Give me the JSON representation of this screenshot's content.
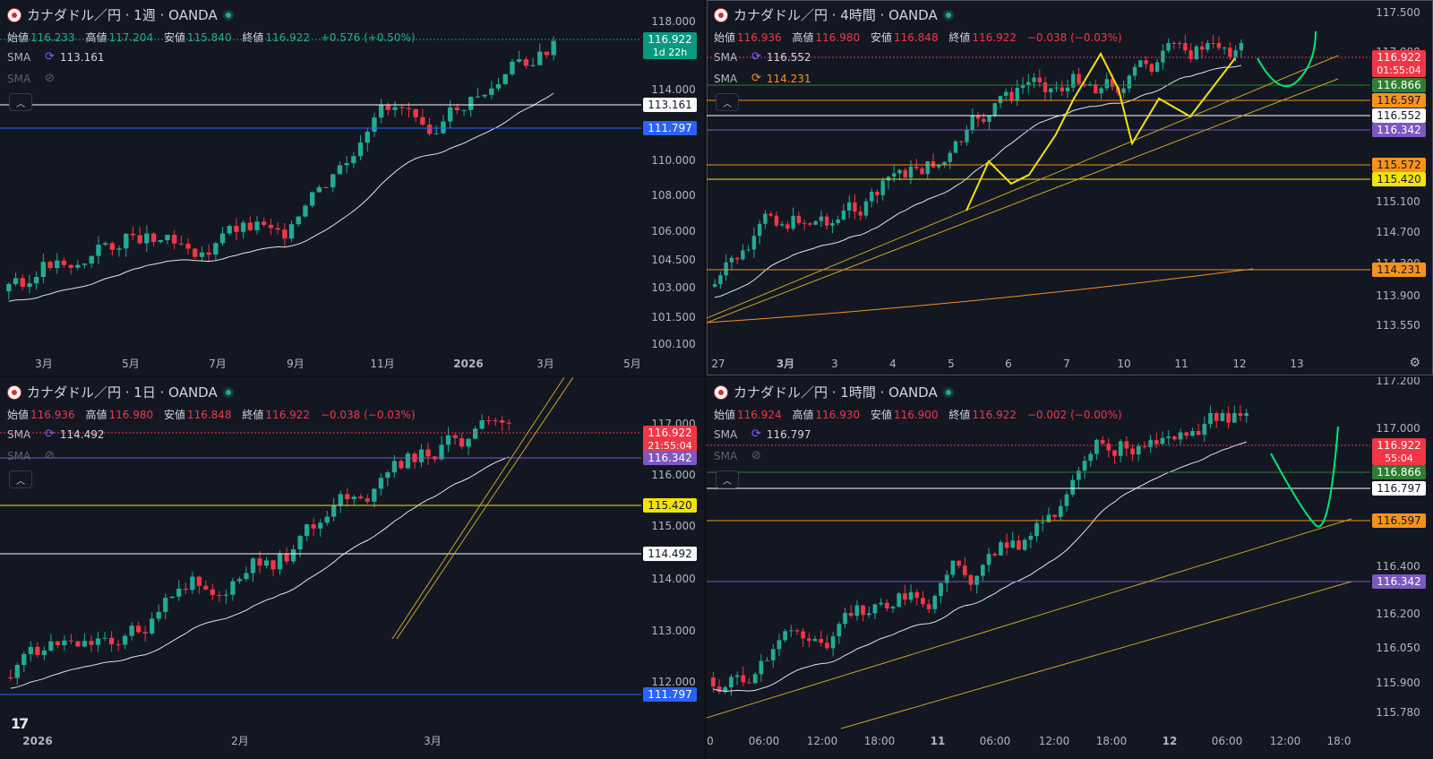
{
  "colors": {
    "bg": "#131722",
    "up": "#22ab94",
    "down": "#f23645",
    "sma": "#e0e3eb",
    "blue": "#2962ff",
    "purple": "#7e57c2",
    "yellow": "#f5e20b",
    "orange": "#f7931a",
    "green": "#00e676",
    "grid": "#1e222d"
  },
  "panels": [
    {
      "id": "weekly",
      "title": "カナダドル／円 · 1週 · OANDA",
      "ohlc": {
        "open_label": "始値",
        "open": "116.233",
        "high_label": "高値",
        "high": "117.204",
        "low_label": "安値",
        "low": "115.840",
        "close_label": "終値",
        "close": "116.922",
        "change": "+0.576 (+0.50%)",
        "color": "up"
      },
      "indicators": [
        {
          "name": "SMA",
          "value": "113.161",
          "icon": "refresh-icon",
          "dim": false
        },
        {
          "name": "SMA",
          "value": "",
          "icon": "eye-off-icon",
          "dim": true
        }
      ],
      "price_ticks": [
        "118.000",
        "114.000",
        "110.000",
        "108.000",
        "106.000",
        "104.500",
        "103.000",
        "101.500",
        "100.100"
      ],
      "time_ticks": [
        "3月",
        "5月",
        "7月",
        "9月",
        "11月",
        "2026",
        "3月",
        "5月"
      ],
      "tags": [
        {
          "text": "116.922",
          "sub": "1d 22h",
          "bg": "#089981",
          "fg": "#ffffff"
        },
        {
          "text": "113.161",
          "bg": "#ffffff",
          "fg": "#131722"
        },
        {
          "text": "111.797",
          "bg": "#2962ff",
          "fg": "#ffffff"
        }
      ]
    },
    {
      "id": "h4",
      "title": "カナダドル／円 · 4時間 · OANDA",
      "ohlc": {
        "open_label": "始値",
        "open": "116.936",
        "high_label": "高値",
        "high": "116.980",
        "low_label": "安値",
        "low": "116.848",
        "close_label": "終値",
        "close": "116.922",
        "change": "−0.038 (−0.03%)",
        "color": "down"
      },
      "indicators": [
        {
          "name": "SMA",
          "value": "116.552",
          "icon": "refresh-icon",
          "dim": false
        },
        {
          "name": "SMA",
          "value": "114.231",
          "icon": "refresh-icon",
          "dim": false,
          "color": "#f7931a"
        }
      ],
      "price_ticks": [
        "117.500",
        "117.000",
        "115.100",
        "114.700",
        "114.300",
        "113.900",
        "113.550"
      ],
      "time_ticks": [
        "27",
        "3月",
        "3",
        "4",
        "5",
        "6",
        "7",
        "10",
        "11",
        "12",
        "13"
      ],
      "tags": [
        {
          "text": "116.922",
          "sub": "01:55:04",
          "bg": "#f23645",
          "fg": "#ffffff"
        },
        {
          "text": "116.866",
          "bg": "#2e7d32",
          "fg": "#ffffff"
        },
        {
          "text": "116.597",
          "bg": "#f7931a",
          "fg": "#131722"
        },
        {
          "text": "116.552",
          "bg": "#ffffff",
          "fg": "#131722"
        },
        {
          "text": "116.342",
          "bg": "#7e57c2",
          "fg": "#ffffff"
        },
        {
          "text": "115.572",
          "bg": "#f7931a",
          "fg": "#131722"
        },
        {
          "text": "115.420",
          "bg": "#f5e20b",
          "fg": "#131722"
        },
        {
          "text": "114.231",
          "bg": "#f7931a",
          "fg": "#131722"
        }
      ]
    },
    {
      "id": "daily",
      "title": "カナダドル／円 · 1日 · OANDA",
      "ohlc": {
        "open_label": "始値",
        "open": "116.936",
        "high_label": "高値",
        "high": "116.980",
        "low_label": "安値",
        "low": "116.848",
        "close_label": "終値",
        "close": "116.922",
        "change": "−0.038 (−0.03%)",
        "color": "down"
      },
      "indicators": [
        {
          "name": "SMA",
          "value": "114.492",
          "icon": "refresh-icon",
          "dim": false
        },
        {
          "name": "SMA",
          "value": "",
          "icon": "eye-off-icon",
          "dim": true
        }
      ],
      "price_ticks": [
        "117.000",
        "116.000",
        "115.000",
        "114.000",
        "113.000",
        "112.000"
      ],
      "time_ticks": [
        "2026",
        "2月",
        "3月"
      ],
      "tags": [
        {
          "text": "116.922",
          "sub": "21:55:04",
          "bg": "#f23645",
          "fg": "#ffffff"
        },
        {
          "text": "116.342",
          "bg": "#7e57c2",
          "fg": "#ffffff"
        },
        {
          "text": "115.420",
          "bg": "#f5e20b",
          "fg": "#131722"
        },
        {
          "text": "114.492",
          "bg": "#ffffff",
          "fg": "#131722"
        },
        {
          "text": "111.797",
          "bg": "#2962ff",
          "fg": "#ffffff"
        }
      ]
    },
    {
      "id": "h1",
      "title": "カナダドル／円 · 1時間 · OANDA",
      "ohlc": {
        "open_label": "始値",
        "open": "116.924",
        "high_label": "高値",
        "high": "116.930",
        "low_label": "安値",
        "low": "116.900",
        "close_label": "終値",
        "close": "116.922",
        "change": "−0.002 (−0.00%)",
        "color": "down"
      },
      "indicators": [
        {
          "name": "SMA",
          "value": "116.797",
          "icon": "refresh-icon",
          "dim": false
        },
        {
          "name": "SMA",
          "value": "",
          "icon": "eye-off-icon",
          "dim": true
        }
      ],
      "price_ticks": [
        "117.200",
        "117.000",
        "116.400",
        "116.200",
        "116.050",
        "115.900",
        "115.780"
      ],
      "time_ticks": [
        "0",
        "06:00",
        "12:00",
        "18:00",
        "11",
        "06:00",
        "12:00",
        "18:00",
        "12",
        "06:00",
        "12:00",
        "18:0"
      ],
      "tags": [
        {
          "text": "116.922",
          "sub": "55:04",
          "bg": "#f23645",
          "fg": "#ffffff"
        },
        {
          "text": "116.866",
          "bg": "#2e7d32",
          "fg": "#ffffff"
        },
        {
          "text": "116.797",
          "bg": "#ffffff",
          "fg": "#131722"
        },
        {
          "text": "116.597",
          "bg": "#f7931a",
          "fg": "#131722"
        },
        {
          "text": "116.342",
          "bg": "#7e57c2",
          "fg": "#ffffff"
        }
      ]
    }
  ],
  "logo": "17"
}
